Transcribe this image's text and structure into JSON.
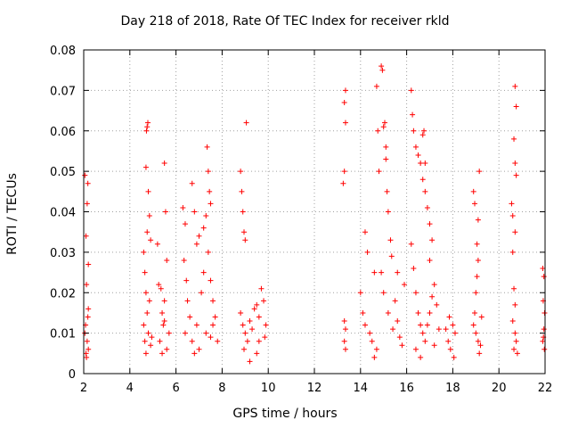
{
  "chart_data": {
    "type": "scatter",
    "title": "Day 218 of 2018, Rate Of TEC Index for receiver rkld",
    "xlabel": "GPS time / hours",
    "ylabel": "ROTI / TECUs",
    "xlim": [
      2,
      22
    ],
    "ylim": [
      0,
      0.08
    ],
    "grid": true,
    "marker": "+",
    "color": "#ff0000",
    "x_ticks": [
      "2",
      "4",
      "6",
      "8",
      "10",
      "12",
      "14",
      "16",
      "18",
      "20",
      "22"
    ],
    "y_ticks": [
      "0",
      "0.01",
      "0.02",
      "0.03",
      "0.04",
      "0.05",
      "0.06",
      "0.07",
      "0.08"
    ],
    "series": [
      {
        "name": "ROTI",
        "points": [
          [
            2.05,
            0.049
          ],
          [
            2.1,
            0.034
          ],
          [
            2.15,
            0.042
          ],
          [
            2.18,
            0.047
          ],
          [
            2.2,
            0.027
          ],
          [
            2.12,
            0.022
          ],
          [
            2.2,
            0.016
          ],
          [
            2.08,
            0.012
          ],
          [
            2.15,
            0.008
          ],
          [
            2.1,
            0.005
          ],
          [
            2.2,
            0.006
          ],
          [
            2.05,
            0.01
          ],
          [
            2.18,
            0.014
          ],
          [
            2.12,
            0.004
          ],
          [
            4.6,
            0.03
          ],
          [
            4.65,
            0.025
          ],
          [
            4.7,
            0.02
          ],
          [
            4.72,
            0.06
          ],
          [
            4.75,
            0.061
          ],
          [
            4.78,
            0.062
          ],
          [
            4.7,
            0.051
          ],
          [
            4.8,
            0.045
          ],
          [
            4.85,
            0.039
          ],
          [
            4.75,
            0.035
          ],
          [
            4.9,
            0.033
          ],
          [
            4.6,
            0.012
          ],
          [
            4.65,
            0.008
          ],
          [
            4.7,
            0.005
          ],
          [
            4.8,
            0.01
          ],
          [
            4.9,
            0.007
          ],
          [
            4.75,
            0.015
          ],
          [
            4.85,
            0.018
          ],
          [
            4.95,
            0.009
          ],
          [
            5.2,
            0.032
          ],
          [
            5.25,
            0.022
          ],
          [
            5.35,
            0.021
          ],
          [
            5.4,
            0.015
          ],
          [
            5.5,
            0.052
          ],
          [
            5.55,
            0.04
          ],
          [
            5.6,
            0.028
          ],
          [
            5.5,
            0.018
          ],
          [
            5.45,
            0.012
          ],
          [
            5.3,
            0.008
          ],
          [
            5.6,
            0.006
          ],
          [
            5.7,
            0.01
          ],
          [
            5.4,
            0.005
          ],
          [
            5.5,
            0.013
          ],
          [
            6.3,
            0.041
          ],
          [
            6.4,
            0.037
          ],
          [
            6.35,
            0.028
          ],
          [
            6.45,
            0.023
          ],
          [
            6.7,
            0.047
          ],
          [
            6.8,
            0.04
          ],
          [
            6.9,
            0.032
          ],
          [
            7.0,
            0.034
          ],
          [
            7.2,
            0.036
          ],
          [
            7.3,
            0.039
          ],
          [
            7.35,
            0.056
          ],
          [
            7.4,
            0.05
          ],
          [
            7.45,
            0.045
          ],
          [
            7.5,
            0.042
          ],
          [
            6.5,
            0.018
          ],
          [
            6.6,
            0.014
          ],
          [
            6.4,
            0.01
          ],
          [
            6.7,
            0.008
          ],
          [
            6.9,
            0.012
          ],
          [
            7.1,
            0.02
          ],
          [
            7.2,
            0.025
          ],
          [
            7.4,
            0.03
          ],
          [
            7.5,
            0.023
          ],
          [
            7.6,
            0.018
          ],
          [
            7.7,
            0.014
          ],
          [
            7.3,
            0.01
          ],
          [
            7.0,
            0.006
          ],
          [
            6.8,
            0.005
          ],
          [
            7.5,
            0.009
          ],
          [
            7.8,
            0.008
          ],
          [
            7.6,
            0.012
          ],
          [
            8.8,
            0.05
          ],
          [
            8.85,
            0.045
          ],
          [
            8.9,
            0.04
          ],
          [
            8.95,
            0.035
          ],
          [
            9.0,
            0.033
          ],
          [
            9.05,
            0.062
          ],
          [
            8.8,
            0.015
          ],
          [
            8.9,
            0.012
          ],
          [
            9.0,
            0.01
          ],
          [
            9.1,
            0.008
          ],
          [
            9.2,
            0.013
          ],
          [
            9.3,
            0.011
          ],
          [
            9.4,
            0.016
          ],
          [
            9.5,
            0.017
          ],
          [
            9.6,
            0.014
          ],
          [
            9.7,
            0.021
          ],
          [
            9.8,
            0.018
          ],
          [
            9.9,
            0.012
          ],
          [
            9.5,
            0.005
          ],
          [
            9.2,
            0.003
          ],
          [
            8.95,
            0.006
          ],
          [
            9.6,
            0.008
          ],
          [
            9.85,
            0.009
          ],
          [
            13.35,
            0.07
          ],
          [
            13.3,
            0.067
          ],
          [
            13.35,
            0.062
          ],
          [
            13.3,
            0.05
          ],
          [
            13.25,
            0.047
          ],
          [
            13.3,
            0.013
          ],
          [
            13.35,
            0.011
          ],
          [
            13.3,
            0.008
          ],
          [
            13.35,
            0.006
          ],
          [
            14.0,
            0.02
          ],
          [
            14.1,
            0.015
          ],
          [
            14.2,
            0.035
          ],
          [
            14.3,
            0.03
          ],
          [
            14.2,
            0.012
          ],
          [
            14.4,
            0.01
          ],
          [
            14.5,
            0.008
          ],
          [
            14.6,
            0.025
          ],
          [
            14.7,
            0.071
          ],
          [
            14.75,
            0.06
          ],
          [
            14.8,
            0.05
          ],
          [
            14.9,
            0.076
          ],
          [
            14.95,
            0.075
          ],
          [
            15.0,
            0.061
          ],
          [
            15.05,
            0.062
          ],
          [
            15.1,
            0.056
          ],
          [
            15.1,
            0.053
          ],
          [
            15.15,
            0.045
          ],
          [
            15.2,
            0.04
          ],
          [
            15.3,
            0.033
          ],
          [
            15.35,
            0.029
          ],
          [
            14.9,
            0.025
          ],
          [
            15.0,
            0.02
          ],
          [
            15.2,
            0.015
          ],
          [
            15.4,
            0.011
          ],
          [
            14.7,
            0.006
          ],
          [
            14.6,
            0.004
          ],
          [
            15.5,
            0.018
          ],
          [
            15.6,
            0.013
          ],
          [
            15.7,
            0.009
          ],
          [
            15.8,
            0.007
          ],
          [
            15.9,
            0.022
          ],
          [
            15.6,
            0.025
          ],
          [
            16.2,
            0.07
          ],
          [
            16.25,
            0.064
          ],
          [
            16.3,
            0.06
          ],
          [
            16.4,
            0.056
          ],
          [
            16.5,
            0.054
          ],
          [
            16.6,
            0.052
          ],
          [
            16.7,
            0.048
          ],
          [
            16.8,
            0.045
          ],
          [
            16.9,
            0.041
          ],
          [
            17.0,
            0.037
          ],
          [
            17.1,
            0.033
          ],
          [
            17.0,
            0.028
          ],
          [
            16.7,
            0.059
          ],
          [
            16.75,
            0.06
          ],
          [
            16.8,
            0.052
          ],
          [
            16.2,
            0.032
          ],
          [
            16.3,
            0.026
          ],
          [
            16.4,
            0.02
          ],
          [
            16.5,
            0.015
          ],
          [
            16.6,
            0.012
          ],
          [
            16.7,
            0.01
          ],
          [
            16.8,
            0.008
          ],
          [
            16.9,
            0.012
          ],
          [
            17.0,
            0.015
          ],
          [
            17.1,
            0.019
          ],
          [
            17.2,
            0.022
          ],
          [
            17.3,
            0.017
          ],
          [
            17.4,
            0.011
          ],
          [
            16.4,
            0.006
          ],
          [
            16.6,
            0.004
          ],
          [
            17.2,
            0.007
          ],
          [
            17.7,
            0.011
          ],
          [
            17.8,
            0.008
          ],
          [
            17.9,
            0.006
          ],
          [
            18.0,
            0.012
          ],
          [
            18.1,
            0.01
          ],
          [
            17.85,
            0.014
          ],
          [
            18.05,
            0.004
          ],
          [
            18.9,
            0.045
          ],
          [
            18.95,
            0.042
          ],
          [
            19.05,
            0.032
          ],
          [
            19.1,
            0.028
          ],
          [
            19.15,
            0.05
          ],
          [
            19.1,
            0.038
          ],
          [
            19.0,
            0.02
          ],
          [
            18.95,
            0.015
          ],
          [
            18.9,
            0.012
          ],
          [
            19.0,
            0.01
          ],
          [
            19.1,
            0.008
          ],
          [
            19.2,
            0.007
          ],
          [
            19.15,
            0.005
          ],
          [
            19.25,
            0.014
          ],
          [
            19.05,
            0.024
          ],
          [
            20.55,
            0.042
          ],
          [
            20.6,
            0.039
          ],
          [
            20.65,
            0.058
          ],
          [
            20.7,
            0.071
          ],
          [
            20.75,
            0.066
          ],
          [
            20.7,
            0.052
          ],
          [
            20.75,
            0.049
          ],
          [
            20.7,
            0.035
          ],
          [
            20.6,
            0.03
          ],
          [
            20.65,
            0.021
          ],
          [
            20.7,
            0.017
          ],
          [
            20.6,
            0.013
          ],
          [
            20.7,
            0.01
          ],
          [
            20.75,
            0.008
          ],
          [
            20.65,
            0.006
          ],
          [
            20.8,
            0.005
          ],
          [
            21.9,
            0.026
          ],
          [
            21.95,
            0.024
          ],
          [
            21.92,
            0.018
          ],
          [
            21.98,
            0.015
          ],
          [
            21.95,
            0.011
          ],
          [
            21.9,
            0.008
          ],
          [
            21.97,
            0.006
          ],
          [
            21.93,
            0.009
          ]
        ]
      }
    ]
  }
}
